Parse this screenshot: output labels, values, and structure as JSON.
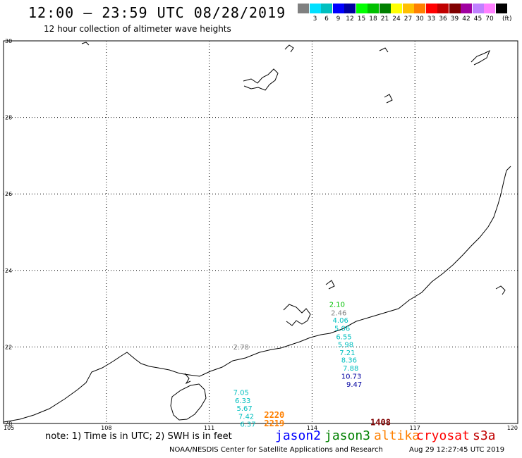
{
  "header": {
    "title": "12:00 – 23:59 UTC 08/28/2019",
    "subtitle": "12 hour collection of altimeter wave heights"
  },
  "scale": {
    "unit": "(ft)",
    "swatches": [
      {
        "color": "#808080",
        "label": ""
      },
      {
        "color": "#00e0ff",
        "label": "3"
      },
      {
        "color": "#00bfbf",
        "label": "6"
      },
      {
        "color": "#0000ff",
        "label": "9"
      },
      {
        "color": "#0000a0",
        "label": "12"
      },
      {
        "color": "#00ff00",
        "label": "15"
      },
      {
        "color": "#00c000",
        "label": "18"
      },
      {
        "color": "#008000",
        "label": "21"
      },
      {
        "color": "#ffff00",
        "label": "24"
      },
      {
        "color": "#ffc000",
        "label": "27"
      },
      {
        "color": "#ff8000",
        "label": "30"
      },
      {
        "color": "#ff0000",
        "label": "33"
      },
      {
        "color": "#c00000",
        "label": "36"
      },
      {
        "color": "#800000",
        "label": "39"
      },
      {
        "color": "#a000a0",
        "label": "42"
      },
      {
        "color": "#c080ff",
        "label": "45"
      },
      {
        "color": "#ff80ff",
        "label": "70"
      },
      {
        "color": "#000000",
        "label": ""
      }
    ]
  },
  "axes": {
    "lat_labels": [
      "30",
      "28",
      "26",
      "24",
      "22",
      "20"
    ],
    "lon_labels": [
      "105",
      "108",
      "111",
      "114",
      "117",
      "120"
    ],
    "lon_range": [
      105,
      120
    ],
    "lat_range": [
      20,
      30
    ]
  },
  "observations": [
    {
      "lon": 111.7,
      "lat": 21.93,
      "value": "2.78",
      "color": "#808080"
    },
    {
      "lon": 111.7,
      "lat": 20.75,
      "value": "7.05",
      "color": "#00bfbf"
    },
    {
      "lon": 111.75,
      "lat": 20.53,
      "value": "6.33",
      "color": "#00bfbf"
    },
    {
      "lon": 111.8,
      "lat": 20.33,
      "value": "5.67",
      "color": "#00bfbf"
    },
    {
      "lon": 111.85,
      "lat": 20.12,
      "value": "7.42",
      "color": "#00bfbf"
    },
    {
      "lon": 111.9,
      "lat": 19.92,
      "value": "6.37",
      "color": "#00bfbf"
    },
    {
      "lon": 114.5,
      "lat": 23.05,
      "value": "2.10",
      "color": "#00c000"
    },
    {
      "lon": 114.55,
      "lat": 22.83,
      "value": "2.46",
      "color": "#808080"
    },
    {
      "lon": 114.6,
      "lat": 22.63,
      "value": "4.06",
      "color": "#00bfbf"
    },
    {
      "lon": 114.65,
      "lat": 22.42,
      "value": "5.06",
      "color": "#00bfbf"
    },
    {
      "lon": 114.7,
      "lat": 22.2,
      "value": "6.55",
      "color": "#00bfbf"
    },
    {
      "lon": 114.75,
      "lat": 22.0,
      "value": "5.98",
      "color": "#00bfbf"
    },
    {
      "lon": 114.8,
      "lat": 21.79,
      "value": "7.21",
      "color": "#00bfbf"
    },
    {
      "lon": 114.85,
      "lat": 21.59,
      "value": "8.36",
      "color": "#00bfbf"
    },
    {
      "lon": 114.9,
      "lat": 21.38,
      "value": "7.88",
      "color": "#00bfbf"
    },
    {
      "lon": 114.85,
      "lat": 21.17,
      "value": "10.73",
      "color": "#0000a0"
    },
    {
      "lon": 115.0,
      "lat": 20.96,
      "value": "9.47",
      "color": "#0000a0"
    }
  ],
  "pass_labels": [
    {
      "lon": 112.6,
      "lat": 20.15,
      "value": "2220",
      "color": "#ff8000"
    },
    {
      "lon": 112.6,
      "lat": 19.93,
      "value": "2219",
      "color": "#ff8000"
    },
    {
      "lon": 115.7,
      "lat": 19.95,
      "value": "1408",
      "color": "#800000"
    }
  ],
  "footer": {
    "note": "note: 1) Time is in UTC; 2) SWH is in feet",
    "satellites": [
      {
        "name": "jason2",
        "color": "#0000ff"
      },
      {
        "name": "jason3",
        "color": "#008000"
      },
      {
        "name": "altika",
        "color": "#ff8000"
      },
      {
        "name": "cryosat",
        "color": "#ff0000"
      },
      {
        "name": "s3a",
        "color": "#c00000"
      }
    ],
    "credit_left": "NOAA/NESDIS Center for Satellite Applications and Research",
    "credit_right": "Aug 29 12:27:45 UTC 2019"
  }
}
